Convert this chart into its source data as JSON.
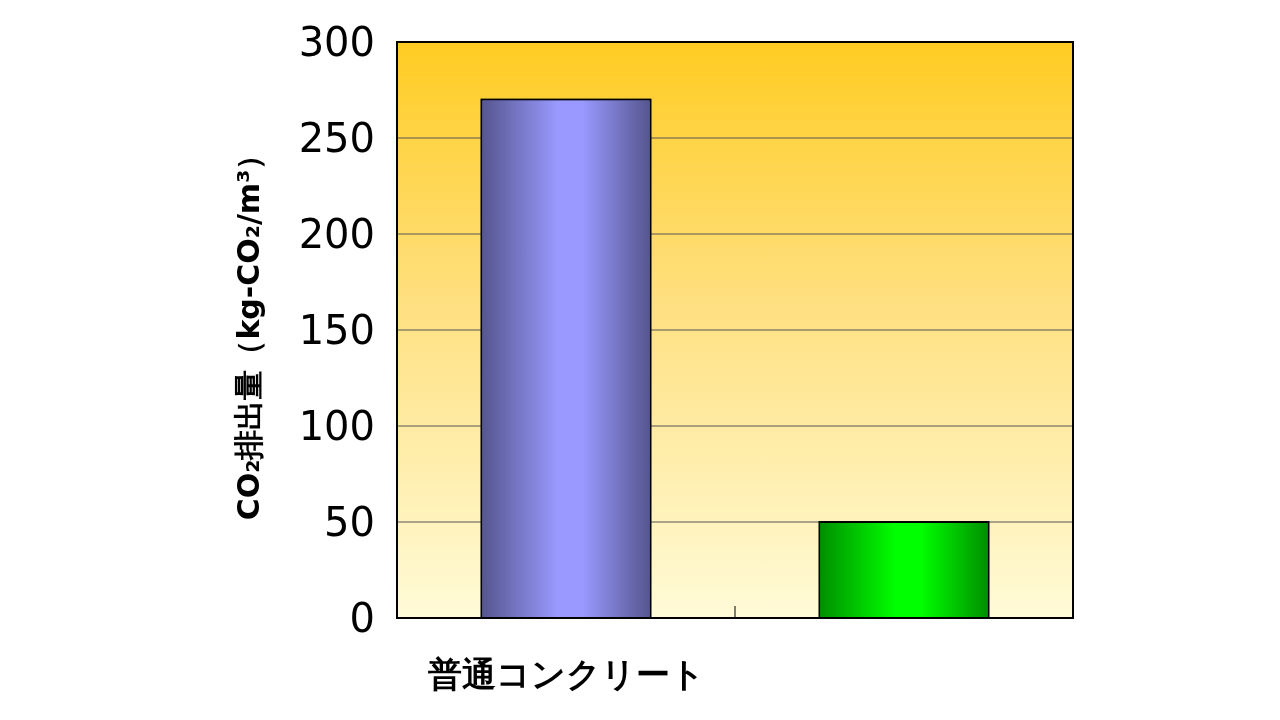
{
  "chart_data": {
    "type": "bar",
    "ylabel": "CO₂排出量（kg-CO₂/m³）",
    "categories": [
      "普通コンクリート",
      null
    ],
    "values": [
      270,
      50
    ],
    "colors": [
      "#9999ff",
      "#00ff00"
    ],
    "ylim": [
      0,
      300
    ],
    "yticks": [
      0,
      50,
      100,
      150,
      200,
      250,
      300
    ],
    "grid": "y"
  }
}
